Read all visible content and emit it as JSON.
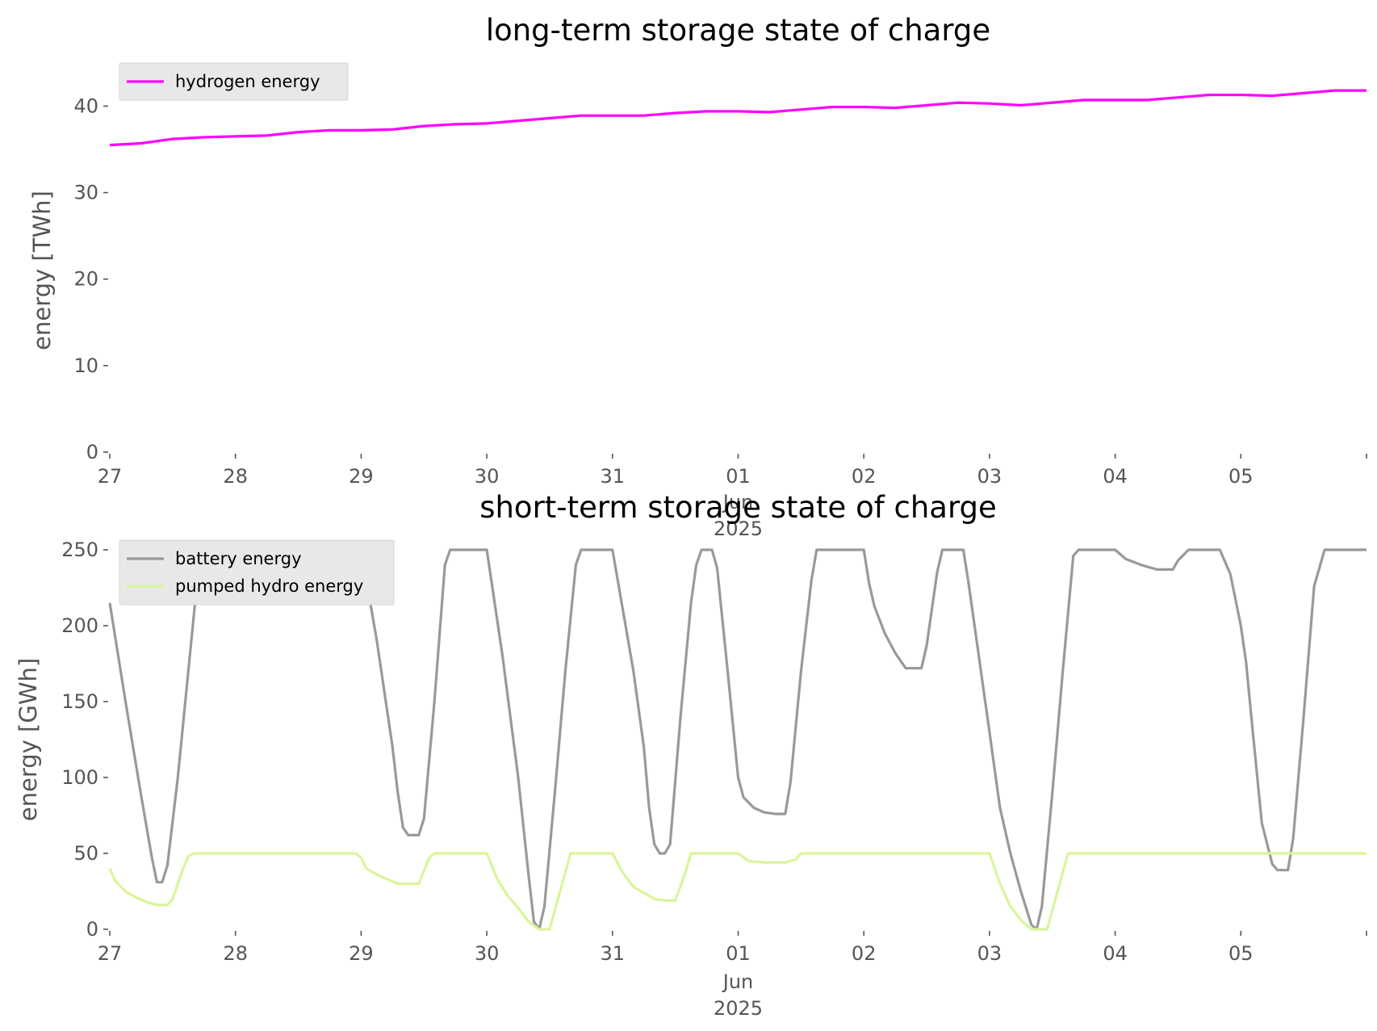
{
  "chart_data": [
    {
      "type": "line",
      "title": "long-term storage state of charge",
      "ylabel": "energy [TWh]",
      "xlabel": "",
      "ylim": [
        0,
        42
      ],
      "yticks": [
        "0",
        "10",
        "20",
        "30",
        "40"
      ],
      "xlim": [
        "2025-05-27",
        "2025-06-06"
      ],
      "xticks": [
        "27",
        "28",
        "29",
        "30",
        "31",
        "01",
        "02",
        "03",
        "04",
        "05"
      ],
      "x_sublabel": [
        "Jun",
        "2025"
      ],
      "grid": false,
      "legend_position": "top-left",
      "series": [
        {
          "name": "hydrogen energy",
          "color": "#ff00ff",
          "points": [
            [
              "2025-05-27 00:00",
              35.5
            ],
            [
              "2025-05-27 06:00",
              35.7
            ],
            [
              "2025-05-27 12:00",
              36.2
            ],
            [
              "2025-05-27 18:00",
              36.4
            ],
            [
              "2025-05-28 00:00",
              36.5
            ],
            [
              "2025-05-28 06:00",
              36.6
            ],
            [
              "2025-05-28 12:00",
              37.0
            ],
            [
              "2025-05-28 18:00",
              37.2
            ],
            [
              "2025-05-29 00:00",
              37.2
            ],
            [
              "2025-05-29 06:00",
              37.3
            ],
            [
              "2025-05-29 12:00",
              37.7
            ],
            [
              "2025-05-29 18:00",
              37.9
            ],
            [
              "2025-05-30 00:00",
              38.0
            ],
            [
              "2025-05-30 06:00",
              38.3
            ],
            [
              "2025-05-30 12:00",
              38.6
            ],
            [
              "2025-05-30 18:00",
              38.9
            ],
            [
              "2025-05-31 00:00",
              38.9
            ],
            [
              "2025-05-31 06:00",
              38.9
            ],
            [
              "2025-05-31 12:00",
              39.2
            ],
            [
              "2025-05-31 18:00",
              39.4
            ],
            [
              "2025-06-01 00:00",
              39.4
            ],
            [
              "2025-06-01 06:00",
              39.3
            ],
            [
              "2025-06-01 12:00",
              39.6
            ],
            [
              "2025-06-01 18:00",
              39.9
            ],
            [
              "2025-06-02 00:00",
              39.9
            ],
            [
              "2025-06-02 06:00",
              39.8
            ],
            [
              "2025-06-02 12:00",
              40.1
            ],
            [
              "2025-06-02 18:00",
              40.4
            ],
            [
              "2025-06-03 00:00",
              40.3
            ],
            [
              "2025-06-03 06:00",
              40.1
            ],
            [
              "2025-06-03 12:00",
              40.4
            ],
            [
              "2025-06-03 18:00",
              40.7
            ],
            [
              "2025-06-04 00:00",
              40.7
            ],
            [
              "2025-06-04 06:00",
              40.7
            ],
            [
              "2025-06-04 12:00",
              41.0
            ],
            [
              "2025-06-04 18:00",
              41.3
            ],
            [
              "2025-06-05 00:00",
              41.3
            ],
            [
              "2025-06-05 06:00",
              41.2
            ],
            [
              "2025-06-05 12:00",
              41.5
            ],
            [
              "2025-06-05 18:00",
              41.8
            ],
            [
              "2025-06-06 00:00",
              41.8
            ]
          ]
        }
      ]
    },
    {
      "type": "line",
      "title": "short-term storage state of charge",
      "ylabel": "energy [GWh]",
      "xlabel": "",
      "ylim": [
        0,
        250
      ],
      "yticks": [
        "0",
        "50",
        "100",
        "150",
        "200",
        "250"
      ],
      "xlim": [
        "2025-05-27",
        "2025-06-06"
      ],
      "xticks": [
        "27",
        "28",
        "29",
        "30",
        "31",
        "01",
        "02",
        "03",
        "04",
        "05"
      ],
      "x_sublabel": [
        "Jun",
        "2025"
      ],
      "grid": false,
      "legend_position": "top-left",
      "series": [
        {
          "name": "battery energy",
          "color": "#999999",
          "points": [
            [
              "2025-05-27 00:00",
              215
            ],
            [
              "2025-05-27 03:00",
              150
            ],
            [
              "2025-05-27 06:00",
              88
            ],
            [
              "2025-05-27 08:00",
              48
            ],
            [
              "2025-05-27 09:00",
              31
            ],
            [
              "2025-05-27 10:00",
              31
            ],
            [
              "2025-05-27 11:00",
              42
            ],
            [
              "2025-05-27 13:00",
              100
            ],
            [
              "2025-05-27 15:00",
              170
            ],
            [
              "2025-05-27 17:00",
              240
            ],
            [
              "2025-05-27 18:00",
              248
            ],
            [
              "2025-05-28 00:00",
              242
            ],
            [
              "2025-05-28 06:00",
              234
            ],
            [
              "2025-05-28 10:00",
              232
            ],
            [
              "2025-05-28 12:00",
              237
            ],
            [
              "2025-05-28 14:00",
              250
            ],
            [
              "2025-05-29 00:00",
              250
            ],
            [
              "2025-05-29 03:00",
              190
            ],
            [
              "2025-05-29 06:00",
              120
            ],
            [
              "2025-05-29 07:00",
              90
            ],
            [
              "2025-05-29 08:00",
              67
            ],
            [
              "2025-05-29 09:00",
              62
            ],
            [
              "2025-05-29 11:00",
              62
            ],
            [
              "2025-05-29 12:00",
              73
            ],
            [
              "2025-05-29 14:00",
              150
            ],
            [
              "2025-05-29 16:00",
              240
            ],
            [
              "2025-05-29 17:00",
              250
            ],
            [
              "2025-05-30 00:00",
              250
            ],
            [
              "2025-05-30 03:00",
              180
            ],
            [
              "2025-05-30 06:00",
              100
            ],
            [
              "2025-05-30 08:00",
              35
            ],
            [
              "2025-05-30 09:00",
              5
            ],
            [
              "2025-05-30 10:00",
              0
            ],
            [
              "2025-05-30 11:00",
              15
            ],
            [
              "2025-05-30 13:00",
              90
            ],
            [
              "2025-05-30 15:00",
              170
            ],
            [
              "2025-05-30 17:00",
              240
            ],
            [
              "2025-05-30 18:00",
              250
            ],
            [
              "2025-05-31 00:00",
              250
            ],
            [
              "2025-05-31 04:00",
              170
            ],
            [
              "2025-05-31 06:00",
              120
            ],
            [
              "2025-05-31 07:00",
              80
            ],
            [
              "2025-05-31 08:00",
              56
            ],
            [
              "2025-05-31 09:00",
              50
            ],
            [
              "2025-05-31 10:00",
              50
            ],
            [
              "2025-05-31 11:00",
              56
            ],
            [
              "2025-05-31 13:00",
              140
            ],
            [
              "2025-05-31 15:00",
              215
            ],
            [
              "2025-05-31 16:00",
              240
            ],
            [
              "2025-05-31 17:00",
              250
            ],
            [
              "2025-05-31 19:00",
              250
            ],
            [
              "2025-05-31 20:00",
              238
            ],
            [
              "2025-05-31 22:00",
              170
            ],
            [
              "2025-06-01 00:00",
              100
            ],
            [
              "2025-06-01 01:00",
              87
            ],
            [
              "2025-06-01 03:00",
              80
            ],
            [
              "2025-06-01 05:00",
              77
            ],
            [
              "2025-06-01 07:00",
              76
            ],
            [
              "2025-06-01 09:00",
              76
            ],
            [
              "2025-06-01 10:00",
              97
            ],
            [
              "2025-06-01 12:00",
              170
            ],
            [
              "2025-06-01 14:00",
              230
            ],
            [
              "2025-06-01 15:00",
              250
            ],
            [
              "2025-06-02 00:00",
              250
            ],
            [
              "2025-06-02 01:00",
              228
            ],
            [
              "2025-06-02 02:00",
              213
            ],
            [
              "2025-06-02 04:00",
              195
            ],
            [
              "2025-06-02 06:00",
              182
            ],
            [
              "2025-06-02 08:00",
              172
            ],
            [
              "2025-06-02 11:00",
              172
            ],
            [
              "2025-06-02 12:00",
              187
            ],
            [
              "2025-06-02 14:00",
              235
            ],
            [
              "2025-06-02 15:00",
              250
            ],
            [
              "2025-06-02 19:00",
              250
            ],
            [
              "2025-06-02 20:00",
              228
            ],
            [
              "2025-06-03 00:00",
              130
            ],
            [
              "2025-06-03 02:00",
              80
            ],
            [
              "2025-06-03 04:00",
              50
            ],
            [
              "2025-06-03 06:00",
              25
            ],
            [
              "2025-06-03 08:00",
              3
            ],
            [
              "2025-06-03 09:00",
              0
            ],
            [
              "2025-06-03 10:00",
              15
            ],
            [
              "2025-06-03 12:00",
              90
            ],
            [
              "2025-06-03 14:00",
              170
            ],
            [
              "2025-06-03 16:00",
              246
            ],
            [
              "2025-06-03 17:00",
              250
            ],
            [
              "2025-06-04 00:00",
              250
            ],
            [
              "2025-06-04 02:00",
              244
            ],
            [
              "2025-06-04 05:00",
              240
            ],
            [
              "2025-06-04 08:00",
              237
            ],
            [
              "2025-06-04 11:00",
              237
            ],
            [
              "2025-06-04 12:00",
              243
            ],
            [
              "2025-06-04 14:00",
              250
            ],
            [
              "2025-06-04 20:00",
              250
            ],
            [
              "2025-06-04 22:00",
              234
            ],
            [
              "2025-06-05 00:00",
              200
            ],
            [
              "2025-06-05 01:00",
              176
            ],
            [
              "2025-06-05 02:00",
              140
            ],
            [
              "2025-06-05 04:00",
              70
            ],
            [
              "2025-06-05 06:00",
              43
            ],
            [
              "2025-06-05 07:00",
              39
            ],
            [
              "2025-06-05 09:00",
              39
            ],
            [
              "2025-06-05 10:00",
              60
            ],
            [
              "2025-06-05 12:00",
              140
            ],
            [
              "2025-06-05 14:00",
              226
            ],
            [
              "2025-06-05 16:00",
              250
            ],
            [
              "2025-06-06 00:00",
              250
            ]
          ]
        },
        {
          "name": "pumped hydro energy",
          "color": "#d9f59a",
          "points": [
            [
              "2025-05-27 00:00",
              40
            ],
            [
              "2025-05-27 01:00",
              32
            ],
            [
              "2025-05-27 03:00",
              25
            ],
            [
              "2025-05-27 05:00",
              21
            ],
            [
              "2025-05-27 07:00",
              18
            ],
            [
              "2025-05-27 09:00",
              16
            ],
            [
              "2025-05-27 11:00",
              16
            ],
            [
              "2025-05-27 12:00",
              20
            ],
            [
              "2025-05-27 14:00",
              40
            ],
            [
              "2025-05-27 15:00",
              48
            ],
            [
              "2025-05-27 16:00",
              50
            ],
            [
              "2025-05-28 23:00",
              50
            ],
            [
              "2025-05-29 00:00",
              47
            ],
            [
              "2025-05-29 01:00",
              40
            ],
            [
              "2025-05-29 03:00",
              36
            ],
            [
              "2025-05-29 05:00",
              33
            ],
            [
              "2025-05-29 07:00",
              30
            ],
            [
              "2025-05-29 11:00",
              30
            ],
            [
              "2025-05-29 13:00",
              47
            ],
            [
              "2025-05-29 14:00",
              50
            ],
            [
              "2025-05-30 00:00",
              50
            ],
            [
              "2025-05-30 02:00",
              33
            ],
            [
              "2025-05-30 04:00",
              22
            ],
            [
              "2025-05-30 06:00",
              14
            ],
            [
              "2025-05-30 08:00",
              5
            ],
            [
              "2025-05-30 10:00",
              0
            ],
            [
              "2025-05-30 12:00",
              0
            ],
            [
              "2025-05-30 14:00",
              25
            ],
            [
              "2025-05-30 16:00",
              50
            ],
            [
              "2025-05-31 00:00",
              50
            ],
            [
              "2025-05-31 02:00",
              37
            ],
            [
              "2025-05-31 04:00",
              28
            ],
            [
              "2025-05-31 06:00",
              24
            ],
            [
              "2025-05-31 08:00",
              20
            ],
            [
              "2025-05-31 10:00",
              19
            ],
            [
              "2025-05-31 12:00",
              19
            ],
            [
              "2025-05-31 14:00",
              38
            ],
            [
              "2025-05-31 15:00",
              50
            ],
            [
              "2025-06-01 00:00",
              50
            ],
            [
              "2025-06-01 02:00",
              45
            ],
            [
              "2025-06-01 05:00",
              44
            ],
            [
              "2025-06-01 09:00",
              44
            ],
            [
              "2025-06-01 11:00",
              46
            ],
            [
              "2025-06-01 12:00",
              50
            ],
            [
              "2025-06-03 00:00",
              50
            ],
            [
              "2025-06-03 02:00",
              30
            ],
            [
              "2025-06-03 04:00",
              15
            ],
            [
              "2025-06-03 06:00",
              6
            ],
            [
              "2025-06-03 08:00",
              0
            ],
            [
              "2025-06-03 11:00",
              0
            ],
            [
              "2025-06-03 13:00",
              25
            ],
            [
              "2025-06-03 15:00",
              50
            ],
            [
              "2025-06-06 00:00",
              50
            ]
          ]
        }
      ]
    }
  ]
}
